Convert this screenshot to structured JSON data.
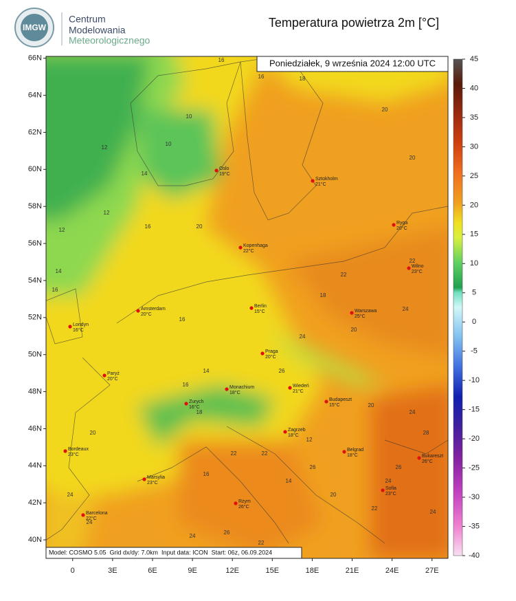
{
  "header": {
    "logo": "IMGW",
    "org": [
      "Centrum",
      "Modelowania",
      "Meteorologicznego"
    ]
  },
  "chart_data": {
    "type": "map",
    "title": "Temperatura powietrza 2m [°C]",
    "timestamp": "Poniedziałek, 9 września 2024 12:00 UTC",
    "footer": "Model: COSMO 5.05  Grid dx/dy: 7.0km  Input data: ICON  Start: 06z, 06.09.2024",
    "xlim": [
      -2,
      28.2
    ],
    "ylim": [
      39,
      66.1
    ],
    "xticks": [
      0,
      {
        "value": 3,
        "label": "3E"
      },
      {
        "value": 6,
        "label": "6E"
      },
      {
        "value": 9,
        "label": "9E"
      },
      {
        "value": 12,
        "label": "12E"
      },
      {
        "value": 15,
        "label": "15E"
      },
      {
        "value": 18,
        "label": "18E"
      },
      {
        "value": 21,
        "label": "21E"
      },
      {
        "value": 24,
        "label": "24E"
      },
      {
        "value": 27,
        "label": "27E"
      }
    ],
    "yticks": [
      {
        "value": 40,
        "label": "40N"
      },
      {
        "value": 42,
        "label": "42N"
      },
      {
        "value": 44,
        "label": "44N"
      },
      {
        "value": 46,
        "label": "46N"
      },
      {
        "value": 48,
        "label": "48N"
      },
      {
        "value": 50,
        "label": "50N"
      },
      {
        "value": 52,
        "label": "52N"
      },
      {
        "value": 54,
        "label": "54N"
      },
      {
        "value": 56,
        "label": "56N"
      },
      {
        "value": 58,
        "label": "58N"
      },
      {
        "value": 60,
        "label": "60N"
      },
      {
        "value": 62,
        "label": "62N"
      },
      {
        "value": 64,
        "label": "64N"
      },
      {
        "value": 66,
        "label": "66N"
      }
    ],
    "colorbar": {
      "lim": [
        -40,
        45
      ],
      "ticks": [
        45,
        40,
        35,
        30,
        25,
        20,
        15,
        10,
        5,
        0,
        -5,
        -10,
        -15,
        -20,
        -25,
        -30,
        -35,
        -40
      ]
    },
    "cities": [
      {
        "name": "Oslo",
        "temp": "19°C"
      },
      {
        "name": "Sztokholm",
        "temp": "21°C"
      },
      {
        "name": "Ryga",
        "temp": "20°C"
      },
      {
        "name": "Kopenhaga",
        "temp": "22°C"
      },
      {
        "name": "Wilno",
        "temp": "23°C"
      },
      {
        "name": "Amsterdam",
        "temp": "20°C"
      },
      {
        "name": "Berlin",
        "temp": "15°C"
      },
      {
        "name": "Warszawa",
        "temp": "25°C"
      },
      {
        "name": "Londyn",
        "temp": "16°C"
      },
      {
        "name": "Praga",
        "temp": "20°C"
      },
      {
        "name": "Paryż",
        "temp": "20°C"
      },
      {
        "name": "Monachium",
        "temp": "18°C"
      },
      {
        "name": "Wiedeń",
        "temp": "21°C"
      },
      {
        "name": "Zurych",
        "temp": "16°C"
      },
      {
        "name": "Budapeszt",
        "temp": "15°C"
      },
      {
        "name": "Zagrzeb",
        "temp": "18°C"
      },
      {
        "name": "Bordeaux",
        "temp": "23°C"
      },
      {
        "name": "Belgrad",
        "temp": "18°C"
      },
      {
        "name": "Bukareszt",
        "temp": "26°C"
      },
      {
        "name": "Marsylia",
        "temp": "23°C"
      },
      {
        "name": "Sofia",
        "temp": "23°C"
      },
      {
        "name": "Barcelona",
        "temp": "22°C"
      },
      {
        "name": "Rzym",
        "temp": "26°C"
      }
    ],
    "contour_labels": [
      16,
      18,
      16,
      12,
      10,
      10,
      12,
      14,
      16,
      12,
      14,
      16,
      20,
      18,
      20,
      20,
      22,
      18,
      20,
      24,
      22,
      24,
      16,
      14,
      16,
      18,
      20,
      24,
      24,
      22,
      14,
      12,
      16,
      22,
      24,
      26,
      26,
      24,
      22,
      20,
      28,
      26,
      24,
      22,
      20,
      26,
      24
    ]
  }
}
